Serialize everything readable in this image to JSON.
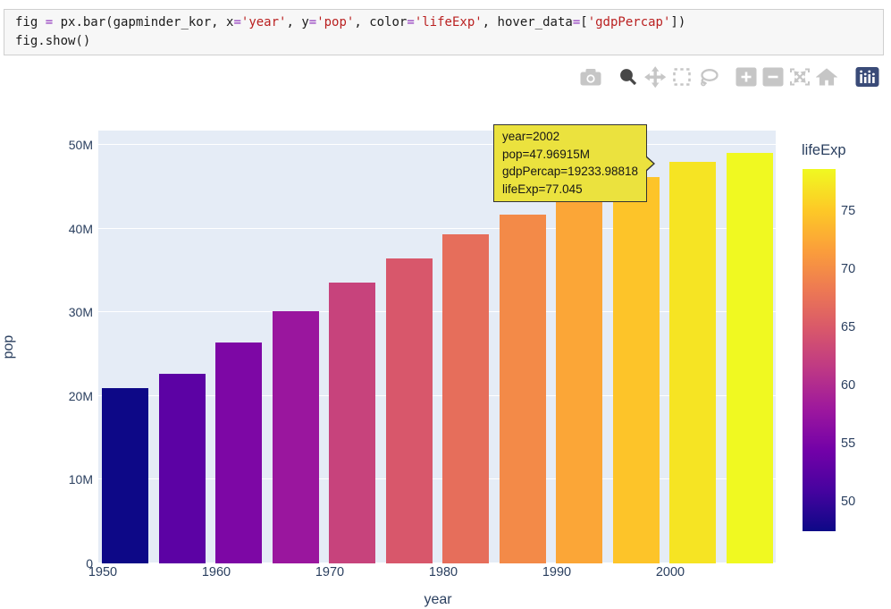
{
  "code_cell": {
    "lines": [
      {
        "segments": [
          {
            "t": "fig ",
            "c": "d"
          },
          {
            "t": "=",
            "c": "o"
          },
          {
            "t": " px.bar(gapminder_kor, x",
            "c": "d"
          },
          {
            "t": "=",
            "c": "o"
          },
          {
            "t": "'year'",
            "c": "s"
          },
          {
            "t": ", y",
            "c": "d"
          },
          {
            "t": "=",
            "c": "o"
          },
          {
            "t": "'pop'",
            "c": "s"
          },
          {
            "t": ", color",
            "c": "d"
          },
          {
            "t": "=",
            "c": "o"
          },
          {
            "t": "'lifeExp'",
            "c": "s"
          },
          {
            "t": ", hover_data",
            "c": "d"
          },
          {
            "t": "=",
            "c": "o"
          },
          {
            "t": "[",
            "c": "d"
          },
          {
            "t": "'gdpPercap'",
            "c": "s"
          },
          {
            "t": "])",
            "c": "d"
          }
        ]
      },
      {
        "segments": [
          {
            "t": "fig.show()",
            "c": "d"
          }
        ]
      }
    ]
  },
  "modebar": {
    "icons": [
      "download-png",
      "zoom",
      "pan",
      "box-select",
      "lasso-select",
      "zoom-in",
      "zoom-out",
      "autoscale",
      "reset-axes",
      "plotly-logo"
    ],
    "active_icon": "zoom",
    "inactive_color": "#c6c6c6",
    "active_color": "#474747",
    "logo_color": "#3a4b78"
  },
  "chart_data": {
    "type": "bar",
    "title": "",
    "xlabel": "year",
    "ylabel": "pop",
    "x": [
      1952,
      1957,
      1962,
      1967,
      1972,
      1977,
      1982,
      1987,
      1992,
      1997,
      2002,
      2007
    ],
    "series": [
      {
        "name": "pop",
        "values": [
          20947571,
          22611552,
          26420307,
          30131000,
          33505000,
          36436000,
          39326000,
          41622000,
          43805450,
          46173816,
          47969150,
          49044790
        ]
      },
      {
        "name": "lifeExp",
        "values": [
          47.453,
          52.681,
          55.292,
          57.716,
          62.612,
          64.766,
          67.123,
          69.81,
          72.244,
          74.647,
          77.045,
          78.623
        ]
      }
    ],
    "bar_colors": [
      "#0d0887",
      "#5c02a4",
      "#7d07a5",
      "#9a169e",
      "#c7437c",
      "#d8576b",
      "#e66e5b",
      "#f38a48",
      "#fba637",
      "#fdc429",
      "#f6e423",
      "#f0f921"
    ],
    "xticks": [
      {
        "value": 1950,
        "label": "1950"
      },
      {
        "value": 1960,
        "label": "1960"
      },
      {
        "value": 1970,
        "label": "1970"
      },
      {
        "value": 1980,
        "label": "1980"
      },
      {
        "value": 1990,
        "label": "1990"
      },
      {
        "value": 2000,
        "label": "2000"
      }
    ],
    "yticks": [
      {
        "value": 0,
        "label": "0"
      },
      {
        "value": 10000000,
        "label": "10M"
      },
      {
        "value": 20000000,
        "label": "20M"
      },
      {
        "value": 30000000,
        "label": "30M"
      },
      {
        "value": 40000000,
        "label": "40M"
      },
      {
        "value": 50000000,
        "label": "50M"
      }
    ],
    "ylim": [
      0,
      51700000
    ],
    "grid": true,
    "plot_bg": "#e5ecf6",
    "grid_color": "#ffffff",
    "colorscale": "plasma"
  },
  "colorbar": {
    "title": "lifeExp",
    "vmin": 47.453,
    "vmax": 78.623,
    "ticks": [
      {
        "value": 50,
        "label": "50"
      },
      {
        "value": 55,
        "label": "55"
      },
      {
        "value": 60,
        "label": "60"
      },
      {
        "value": 65,
        "label": "65"
      },
      {
        "value": 70,
        "label": "70"
      },
      {
        "value": 75,
        "label": "75"
      }
    ],
    "gradient": [
      "#0d0887",
      "#46039f",
      "#7201a8",
      "#9c179e",
      "#bd3786",
      "#d8576b",
      "#ed7953",
      "#fb9f3a",
      "#fdca26",
      "#f0f921"
    ]
  },
  "tooltip": {
    "lines": [
      "year=2002",
      "pop=47.96915M",
      "gdpPercap=19233.98818",
      "lifeExp=77.045"
    ],
    "bg": "#ebe23e",
    "border": "#333333",
    "text_color": "#161616"
  }
}
